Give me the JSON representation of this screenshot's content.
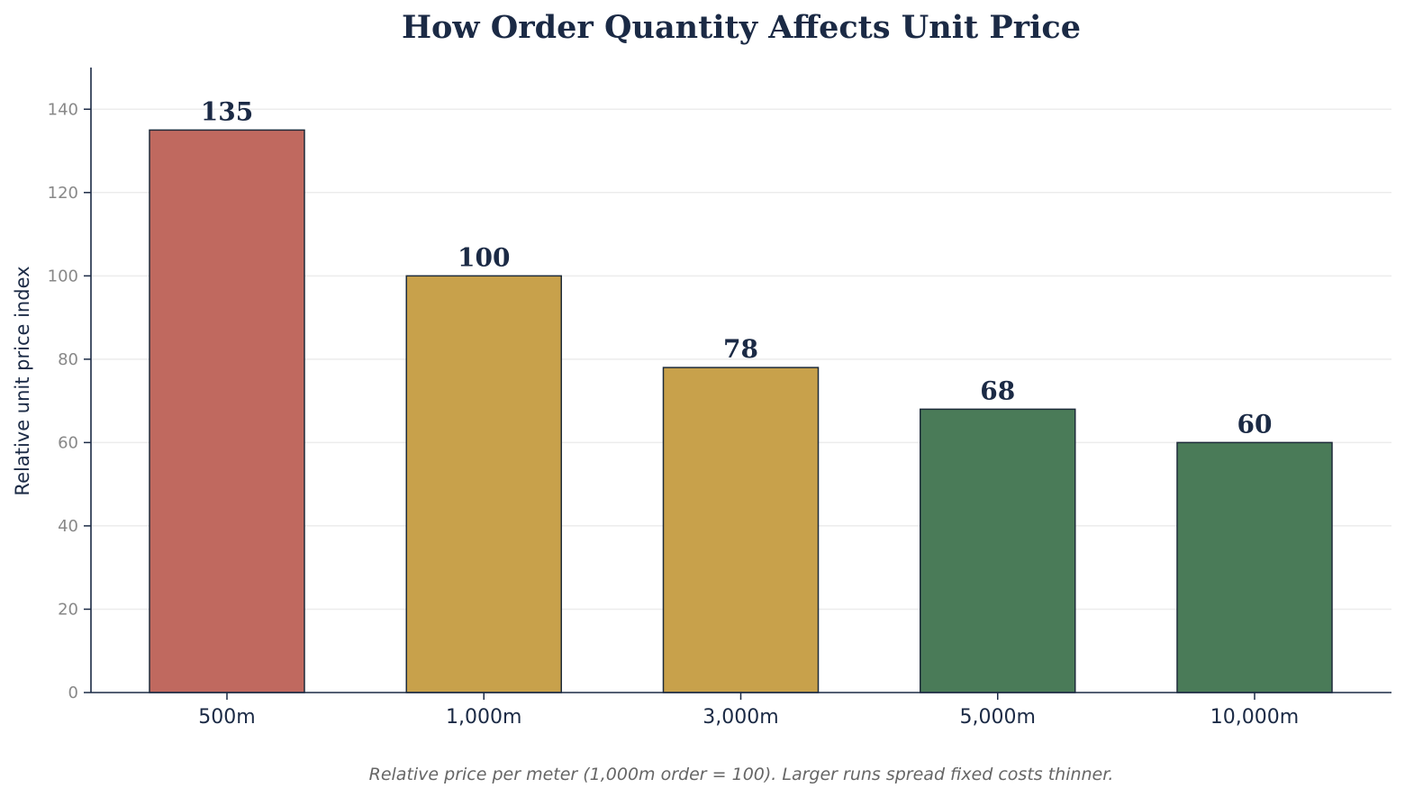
{
  "chart_data": {
    "type": "bar",
    "title": "How Order Quantity Affects Unit Price",
    "ylabel": "Relative unit price index",
    "xlabel": "",
    "categories": [
      "500m",
      "1,000m",
      "3,000m",
      "5,000m",
      "10,000m"
    ],
    "values": [
      135,
      100,
      78,
      68,
      60
    ],
    "data_labels": [
      "135",
      "100",
      "78",
      "68",
      "60"
    ],
    "bar_colors": [
      "#c0695f",
      "#c8a14b",
      "#c8a14b",
      "#4a7b58",
      "#4a7b58"
    ],
    "ylim": [
      0,
      150
    ],
    "yticks": [
      0,
      20,
      40,
      60,
      80,
      100,
      120,
      140
    ],
    "grid": "horizontal",
    "caption": "Relative price per meter (1,000m order = 100). Larger runs spread fixed costs thinner."
  },
  "colors": {
    "text": "#1b2a45",
    "axis": "#1b2a45",
    "grid": "#ececec",
    "tick_label": "#888888",
    "bar_edge": "#1e2b3a"
  }
}
